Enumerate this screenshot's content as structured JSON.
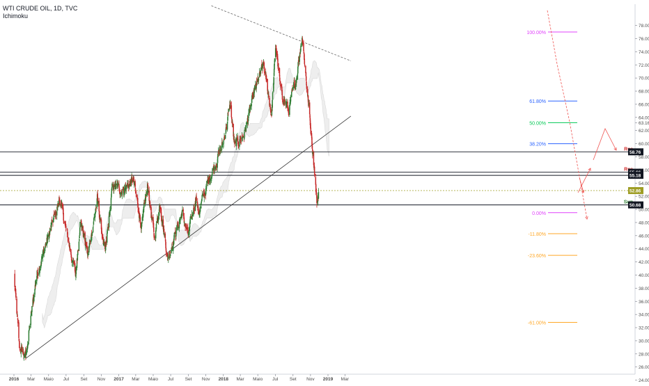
{
  "header": {
    "symbol_title": "WTI CRUDE OIL, 1D, TVC",
    "indicator": "Ichimoku"
  },
  "chart_data": {
    "type": "candlestick",
    "title": "WTI CRUDE OIL, 1D, TVC",
    "indicator": "Ichimoku",
    "x_ticks": [
      "2016",
      "Mar",
      "Maio",
      "Jul",
      "Set",
      "Nov",
      "2017",
      "Mar",
      "Maio",
      "Jul",
      "Set",
      "Nov",
      "2018",
      "Mar",
      "Maio",
      "Jul",
      "Set",
      "Nov",
      "2019",
      "Mar"
    ],
    "y_ticks": [
      "78.00",
      "76.00",
      "74.00",
      "72.00",
      "70.00",
      "68.00",
      "66.00",
      "64.00",
      "63.16",
      "62.00",
      "60.00",
      "58.00",
      "56.00",
      "54.00",
      "52.00",
      "50.00",
      "48.00",
      "46.00",
      "44.00",
      "42.00",
      "40.00",
      "38.00",
      "36.00",
      "34.00",
      "32.00",
      "30.00",
      "28.00",
      "26.00",
      "24.00"
    ],
    "ylim": [
      23.5,
      79
    ],
    "price_anchors": [
      {
        "date": "2016-01-01",
        "value": 40.0
      },
      {
        "date": "2016-01-20",
        "value": 29.0
      },
      {
        "date": "2016-02-11",
        "value": 27.5
      },
      {
        "date": "2016-03-20",
        "value": 40.0
      },
      {
        "date": "2016-05-01",
        "value": 46.0
      },
      {
        "date": "2016-06-09",
        "value": 51.5
      },
      {
        "date": "2016-08-03",
        "value": 40.0
      },
      {
        "date": "2016-08-20",
        "value": 48.5
      },
      {
        "date": "2016-09-15",
        "value": 43.0
      },
      {
        "date": "2016-10-18",
        "value": 51.5
      },
      {
        "date": "2016-11-14",
        "value": 43.0
      },
      {
        "date": "2016-12-10",
        "value": 53.5
      },
      {
        "date": "2017-01-15",
        "value": 53.0
      },
      {
        "date": "2017-02-20",
        "value": 54.5
      },
      {
        "date": "2017-03-22",
        "value": 47.5
      },
      {
        "date": "2017-04-12",
        "value": 53.5
      },
      {
        "date": "2017-05-05",
        "value": 45.5
      },
      {
        "date": "2017-05-25",
        "value": 51.0
      },
      {
        "date": "2017-06-21",
        "value": 42.5
      },
      {
        "date": "2017-07-15",
        "value": 46.0
      },
      {
        "date": "2017-08-10",
        "value": 49.5
      },
      {
        "date": "2017-08-31",
        "value": 46.0
      },
      {
        "date": "2017-09-28",
        "value": 52.0
      },
      {
        "date": "2017-10-06",
        "value": 49.5
      },
      {
        "date": "2017-11-15",
        "value": 55.0
      },
      {
        "date": "2017-12-31",
        "value": 60.0
      },
      {
        "date": "2018-01-25",
        "value": 66.0
      },
      {
        "date": "2018-02-09",
        "value": 59.5
      },
      {
        "date": "2018-03-15",
        "value": 61.5
      },
      {
        "date": "2018-04-20",
        "value": 68.0
      },
      {
        "date": "2018-05-21",
        "value": 72.0
      },
      {
        "date": "2018-06-18",
        "value": 64.5
      },
      {
        "date": "2018-07-03",
        "value": 75.0
      },
      {
        "date": "2018-07-20",
        "value": 68.0
      },
      {
        "date": "2018-08-16",
        "value": 65.0
      },
      {
        "date": "2018-09-12",
        "value": 70.0
      },
      {
        "date": "2018-10-03",
        "value": 76.5
      },
      {
        "date": "2018-10-25",
        "value": 66.0
      },
      {
        "date": "2018-11-15",
        "value": 56.0
      },
      {
        "date": "2018-11-24",
        "value": 50.5
      },
      {
        "date": "2018-11-29",
        "value": 52.9
      }
    ],
    "horizontal_levels": [
      {
        "value": 58.76,
        "label": "Res",
        "tag": "58.76"
      },
      {
        "value": 55.66,
        "label": "Res",
        "tag": "55.66"
      },
      {
        "value": 55.18,
        "label": "",
        "tag": "55.18"
      },
      {
        "value": 52.86,
        "label": "",
        "tag": "52.86"
      },
      {
        "value": 50.68,
        "label": "Sup",
        "tag": "50.68"
      }
    ],
    "fibonacci_levels": [
      {
        "label": "100.00%",
        "value": 77.0,
        "color": "#e040fb"
      },
      {
        "label": "61.80%",
        "value": 66.5,
        "color": "#2962ff"
      },
      {
        "label": "50.00%",
        "value": 63.2,
        "color": "#00c853"
      },
      {
        "label": "38.20%",
        "value": 60.0,
        "color": "#2962ff"
      },
      {
        "label": "0.00%",
        "value": 49.5,
        "color": "#e040fb"
      },
      {
        "label": "-11.80%",
        "value": 46.3,
        "color": "#ffa726"
      },
      {
        "label": "-23.60%",
        "value": 43.0,
        "color": "#ffa726"
      },
      {
        "label": "-61.00%",
        "value": 32.8,
        "color": "#ffa726"
      }
    ],
    "trendlines": [
      {
        "from": {
          "date": "2016-02-11",
          "value": 27.3
        },
        "to": {
          "date": "2019-03-22",
          "value": 64.2
        },
        "style": "solid"
      },
      {
        "from": {
          "date": "2017-11-20",
          "value": 81.0
        },
        "to": {
          "date": "2019-03-22",
          "value": 72.6
        },
        "style": "dashed"
      }
    ],
    "colors": {
      "up": "#2e7d32",
      "down": "#c62828",
      "cloud": "#d9d9d9",
      "trend_arrows": "#ef5350",
      "label_res": "#d32f2f",
      "label_sup": "#2e7d32",
      "price_tag": "#131722"
    }
  }
}
